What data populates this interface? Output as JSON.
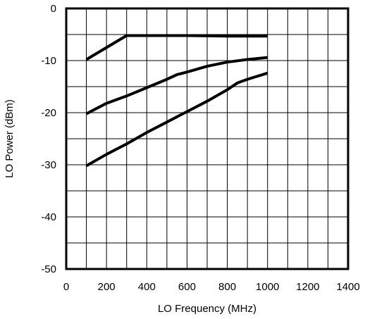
{
  "chart_data": {
    "type": "line",
    "title": "",
    "xlabel": "LO Frequency (MHz)",
    "ylabel": "LO Power (dBm)",
    "xlim": [
      0,
      1400
    ],
    "ylim": [
      -50,
      0
    ],
    "x_ticks": [
      0,
      200,
      400,
      600,
      800,
      1000,
      1200,
      1400
    ],
    "x_tick_labels": [
      "0",
      "200",
      "400",
      "600",
      "800",
      "1000",
      "1200",
      "1400"
    ],
    "y_ticks": [
      0,
      -10,
      -20,
      -30,
      -40,
      -50
    ],
    "y_tick_labels": [
      "0",
      "-10",
      "-20",
      "-30",
      "-40",
      "-50"
    ],
    "x_minor_step": 100,
    "y_minor_step": 5,
    "grid": true,
    "legend": "none",
    "line_color": "#000000",
    "series": [
      {
        "x": [
          100,
          300,
          400,
          600,
          800,
          1000
        ],
        "y": [
          -9.8,
          -5.2,
          -5.2,
          -5.2,
          -5.3,
          -5.3
        ]
      },
      {
        "x": [
          100,
          200,
          300,
          400,
          500,
          550,
          600,
          700,
          800,
          900,
          1000
        ],
        "y": [
          -20.2,
          -18.2,
          -16.8,
          -15.2,
          -13.6,
          -12.7,
          -12.2,
          -11.1,
          -10.3,
          -9.8,
          -9.4
        ]
      },
      {
        "x": [
          100,
          200,
          300,
          400,
          500,
          600,
          700,
          800,
          850,
          900,
          1000
        ],
        "y": [
          -30.2,
          -28.0,
          -26.0,
          -23.8,
          -21.8,
          -19.8,
          -17.8,
          -15.6,
          -14.3,
          -13.6,
          -12.4
        ]
      }
    ]
  }
}
